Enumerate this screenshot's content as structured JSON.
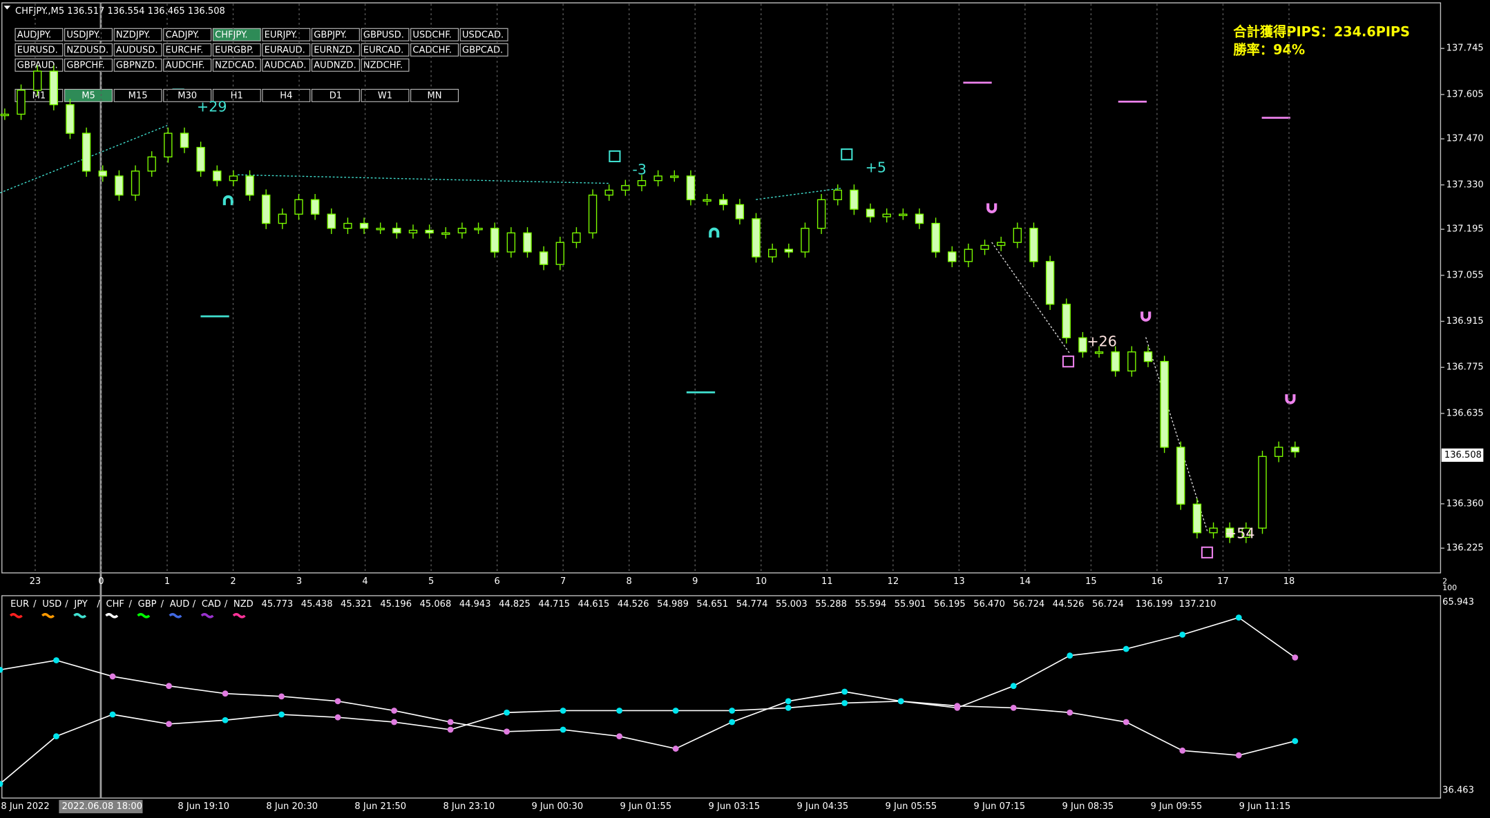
{
  "header": {
    "symbol_line": "CHFJPY.,M5  136.517 136.554 136.465 136.508"
  },
  "symbols": [
    [
      "AUDJPY.",
      "USDJPY.",
      "NZDJPY.",
      "CADJPY.",
      "CHFJPY.",
      "EURJPY.",
      "GBPJPY.",
      "GBPUSD.",
      "USDCHF.",
      "USDCAD."
    ],
    [
      "EURUSD.",
      "NZDUSD.",
      "AUDUSD.",
      "EURCHF.",
      "EURGBP.",
      "EURAUD.",
      "EURNZD.",
      "EURCAD.",
      "CADCHF.",
      "GBPCAD."
    ],
    [
      "GBPAUD.",
      "GBPCHF.",
      "GBPNZD.",
      "AUDCHF.",
      "NZDCAD.",
      "AUDCAD.",
      "AUDNZD.",
      "NZDCHF."
    ]
  ],
  "timeframes": [
    "M1",
    "M5",
    "M15",
    "M30",
    "H1",
    "H4",
    "D1",
    "W1",
    "MN"
  ],
  "stats": {
    "total_pips": "合計獲得PIPS：234.6PIPS",
    "win_rate": "勝率：94%"
  },
  "price_axis": {
    "ticks": [
      137.745,
      137.605,
      {
        "value": 137.47,
        "label": "137.470"
      },
      {
        "value": 137.33,
        "label": "137.330"
      },
      137.195,
      137.055,
      136.915,
      136.775,
      136.635,
      {
        "value": 136.36,
        "label": "136.360"
      },
      136.225
    ],
    "current": 136.508
  },
  "hour_labels": [
    "23",
    "0",
    "1",
    "2",
    "3",
    "4",
    "5",
    "6",
    "7",
    "8",
    "9",
    "10",
    "11",
    "12",
    "13",
    "14",
    "15",
    "16",
    "17",
    "18"
  ],
  "chart": {
    "closes": [
      137.545,
      137.618,
      137.676,
      137.574,
      137.487,
      137.372,
      137.357,
      137.299,
      137.372,
      137.415,
      137.487,
      137.444,
      137.372,
      137.343,
      137.357,
      137.299,
      137.213,
      137.241,
      137.285,
      137.241,
      137.198,
      137.213,
      137.198,
      137.198,
      137.184,
      137.192,
      137.184,
      137.184,
      137.198,
      137.198,
      137.126,
      137.184,
      137.126,
      137.088,
      137.155,
      137.184,
      137.299,
      137.314,
      137.328,
      137.343,
      137.357,
      137.357,
      137.285,
      137.285,
      137.27,
      137.227,
      137.111,
      137.134,
      137.126,
      137.198,
      137.285,
      137.314,
      137.256,
      137.233,
      137.241,
      137.241,
      137.213,
      137.126,
      137.097,
      137.134,
      137.146,
      137.155,
      137.198,
      137.097,
      136.967,
      136.865,
      136.822,
      136.822,
      136.764,
      136.822,
      136.793,
      136.532,
      136.359,
      136.272,
      136.286,
      136.258,
      136.286,
      136.504,
      136.532,
      136.518
    ],
    "annotations": [
      "+29",
      "-3",
      "+5",
      "+26",
      "+54"
    ]
  },
  "indicator": {
    "legend": [
      "EUR",
      "USD",
      "JPY",
      "CHF",
      "GBP",
      "AUD",
      "CAD",
      "NZD"
    ],
    "legend_colors": [
      "#ff2020",
      "#ff9900",
      "#40e0d0",
      "#ffffff",
      "#00ff00",
      "#4169e1",
      "#9932cc",
      "#ff3399"
    ],
    "values": [
      "45.773",
      "45.438",
      "45.321",
      "45.196",
      "45.068",
      "44.943",
      "44.825",
      "44.715",
      "44.615",
      "44.526",
      "54.989",
      "54.651",
      "54.774",
      "55.003",
      "55.288",
      "55.594",
      "55.901",
      "56.195",
      "56.470",
      "56.724",
      "44.526",
      "56.724",
      "136.199",
      "137.210"
    ],
    "axis_top": 65.943,
    "axis_bottom": 36.463,
    "corner_labels": [
      "2",
      "100"
    ],
    "line1": [
      55.37,
      56.86,
      54.33,
      52.84,
      51.65,
      51.2,
      50.45,
      48.97,
      47.18,
      45.69,
      45.99,
      44.95,
      43.01,
      47.18,
      50.45,
      51.94,
      50.45,
      49.41,
      52.84,
      57.6,
      58.64,
      60.88,
      63.56,
      57.3
    ],
    "line2": [
      37.5,
      44.95,
      48.37,
      46.88,
      47.48,
      48.37,
      47.92,
      47.18,
      45.99,
      48.67,
      48.97,
      48.97,
      48.97,
      48.97,
      49.41,
      50.16,
      50.45,
      49.71,
      49.41,
      48.67,
      47.18,
      42.71,
      41.97,
      44.2
    ]
  },
  "time_axis": {
    "crosshair": "2022.06.08 18:00",
    "labels": [
      "8 Jun 2022",
      "8 Jun 19:10",
      "8 Jun 20:30",
      "8 Jun 21:50",
      "8 Jun 23:10",
      "9 Jun 00:30",
      "9 Jun 01:55",
      "9 Jun 03:15",
      "9 Jun 04:35",
      "9 Jun 05:55",
      "9 Jun 07:15",
      "9 Jun 08:35",
      "9 Jun 09:55",
      "9 Jun 11:15"
    ]
  }
}
